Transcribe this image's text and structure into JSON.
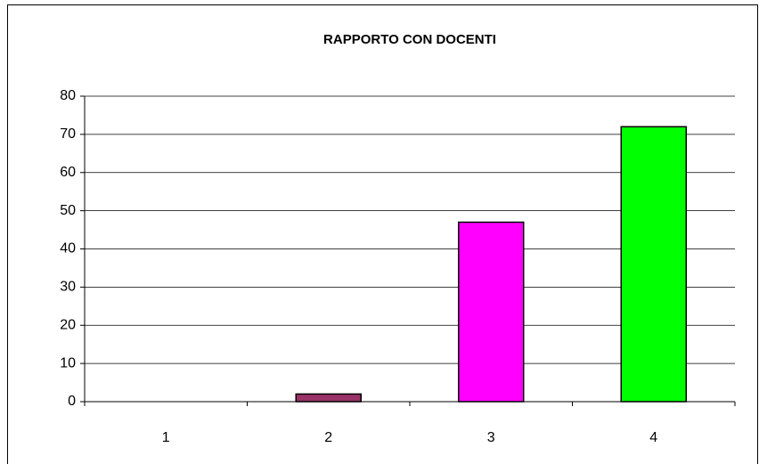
{
  "chart_data": {
    "type": "bar",
    "title": "RAPPORTO CON DOCENTI",
    "categories": [
      "1",
      "2",
      "3",
      "4"
    ],
    "values": [
      0,
      2,
      47,
      72
    ],
    "colors": [
      "#9999ff",
      "#993366",
      "#ff00ff",
      "#00ff00"
    ],
    "ylim": [
      0,
      80
    ],
    "yticks": [
      0,
      10,
      20,
      30,
      40,
      50,
      60,
      70,
      80
    ],
    "grid": true
  }
}
